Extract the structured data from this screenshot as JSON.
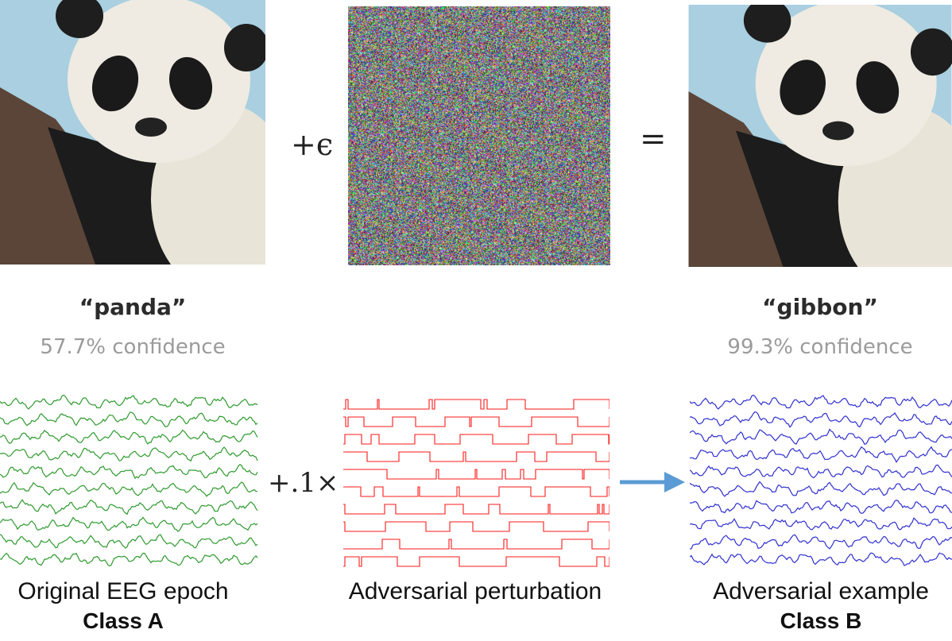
{
  "top_row": {
    "left_label": "“panda”",
    "left_confidence": "57.7% confidence",
    "right_label": "“gibbon”",
    "right_confidence": "99.3% confidence",
    "plus_epsilon": "+ϵ",
    "equals": "="
  },
  "bottom_row": {
    "multiplier": "+.1×",
    "left_caption": "Original EEG epoch",
    "left_class": "Class A",
    "middle_caption": "Adversarial perturbation",
    "right_caption": "Adversarial example",
    "right_class": "Class B"
  },
  "colors": {
    "original_signal": "#2e9a2e",
    "perturbation": "#ff1a1a",
    "adversarial_signal": "#3030d0",
    "arrow": "#5b9bd5"
  },
  "icons": {
    "left_image": "panda-photo",
    "noise_image": "noise-image",
    "right_image": "panda-photo"
  }
}
